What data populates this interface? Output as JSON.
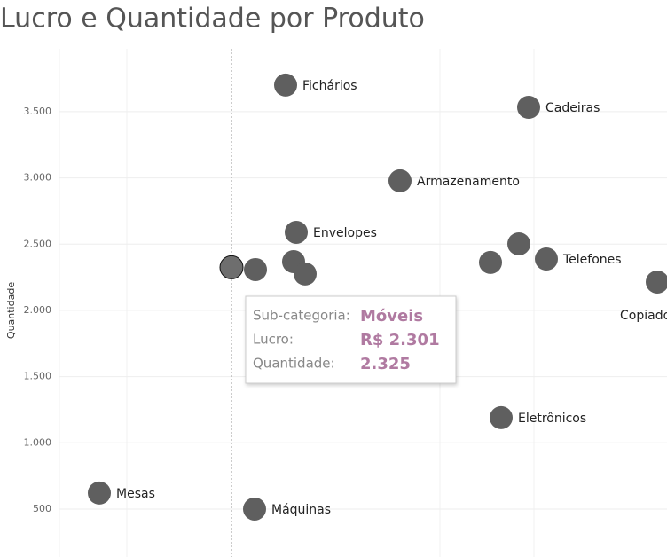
{
  "chart_data": {
    "type": "scatter",
    "title": "Lucro e Quantidade por Produto",
    "y_label": "Quantidade",
    "labels": [
      "Fichários",
      "Cadeiras",
      "Armazenamento",
      "Envelopes",
      "Móveis",
      null,
      null,
      null,
      null,
      null,
      "Telefones",
      "Copiadoras",
      "Eletrônicos",
      "Mesas",
      "Máquinas"
    ],
    "x": [
      9072,
      39486,
      23391,
      10404,
      2301,
      5298,
      10071,
      11514,
      34713,
      38265,
      41706,
      55581,
      36045,
      -14238,
      5187
    ],
    "y": [
      3701,
      3533,
      2978,
      2589,
      2325,
      2308,
      2368,
      2275,
      2362,
      2502,
      2388,
      2214,
      1190,
      621,
      500
    ],
    "color": "#5f5f5f",
    "selected_color": "#6e6e6e",
    "selected": 4,
    "show_labels": [
      true,
      true,
      true,
      true,
      false,
      false,
      false,
      false,
      false,
      false,
      true,
      true,
      true,
      true,
      true
    ],
    "xlim": [
      -26670,
      56802
    ],
    "ylim": [
      138,
      3975
    ],
    "yticks": [
      500,
      {
        "value": 1000,
        "label": "1.000"
      },
      {
        "value": 1500,
        "label": "1.500"
      },
      {
        "value": 2000,
        "label": "2.000"
      },
      {
        "value": 2500,
        "label": "2.500"
      },
      {
        "value": 3000,
        "label": "3.000"
      },
      {
        "value": 3500,
        "label": "3.500"
      }
    ],
    "grid": true,
    "tooltip": {
      "rows": [
        {
          "label": "Sub-categoria:",
          "value": "Móveis"
        },
        {
          "label": "Lucro:",
          "value": "R$ 2.301"
        },
        {
          "label": "Quantidade:",
          "value": "2.325"
        }
      ]
    }
  }
}
